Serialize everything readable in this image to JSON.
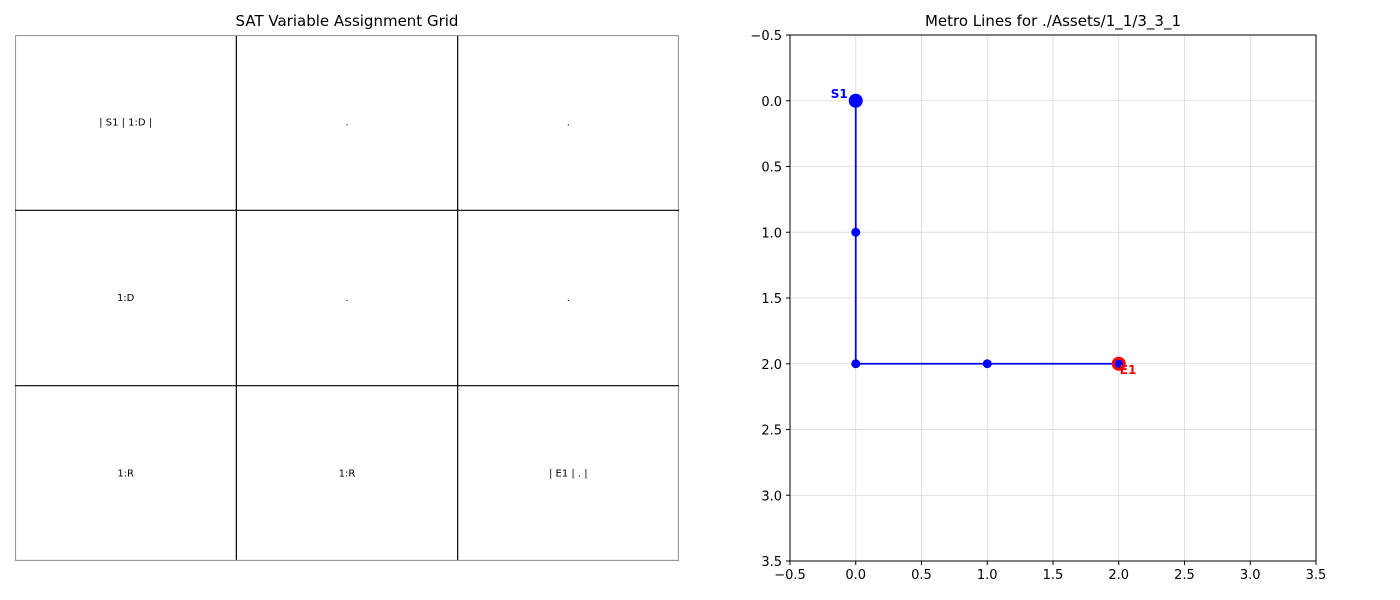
{
  "sat_grid": {
    "title": "SAT Variable Assignment Grid",
    "rows": [
      [
        "| S1 | 1:D |",
        ".",
        "."
      ],
      [
        "1:D",
        ".",
        "."
      ],
      [
        "1:R",
        "1:R",
        "| E1 | . |"
      ]
    ]
  },
  "chart_data": {
    "type": "line",
    "title": "Metro Lines for ./Assets/1_1/3_3_1",
    "xlabel": "",
    "ylabel": "",
    "xlim": [
      -0.5,
      3.5
    ],
    "ylim": [
      3.5,
      -0.5
    ],
    "y_inverted": true,
    "grid": true,
    "xticks": [
      "−0.5",
      "0.0",
      "0.5",
      "1.0",
      "1.5",
      "2.0",
      "2.5",
      "3.0",
      "3.5"
    ],
    "yticks": [
      "−0.5",
      "0.0",
      "0.5",
      "1.0",
      "1.5",
      "2.0",
      "2.5",
      "3.0",
      "3.5"
    ],
    "xtick_values": [
      -0.5,
      0,
      0.5,
      1,
      1.5,
      2,
      2.5,
      3,
      3.5
    ],
    "ytick_values": [
      -0.5,
      0,
      0.5,
      1,
      1.5,
      2,
      2.5,
      3,
      3.5
    ],
    "series": [
      {
        "color": "#0000ff",
        "points": [
          [
            0,
            0
          ],
          [
            0,
            1
          ],
          [
            0,
            2
          ],
          [
            1,
            2
          ],
          [
            2,
            2
          ]
        ]
      }
    ],
    "stations": [
      {
        "label": "S1",
        "x": 0,
        "y": 0,
        "color": "#0000ff",
        "kind": "start"
      },
      {
        "label": "E1",
        "x": 2,
        "y": 2,
        "color": "#ff0000",
        "kind": "end"
      }
    ]
  }
}
